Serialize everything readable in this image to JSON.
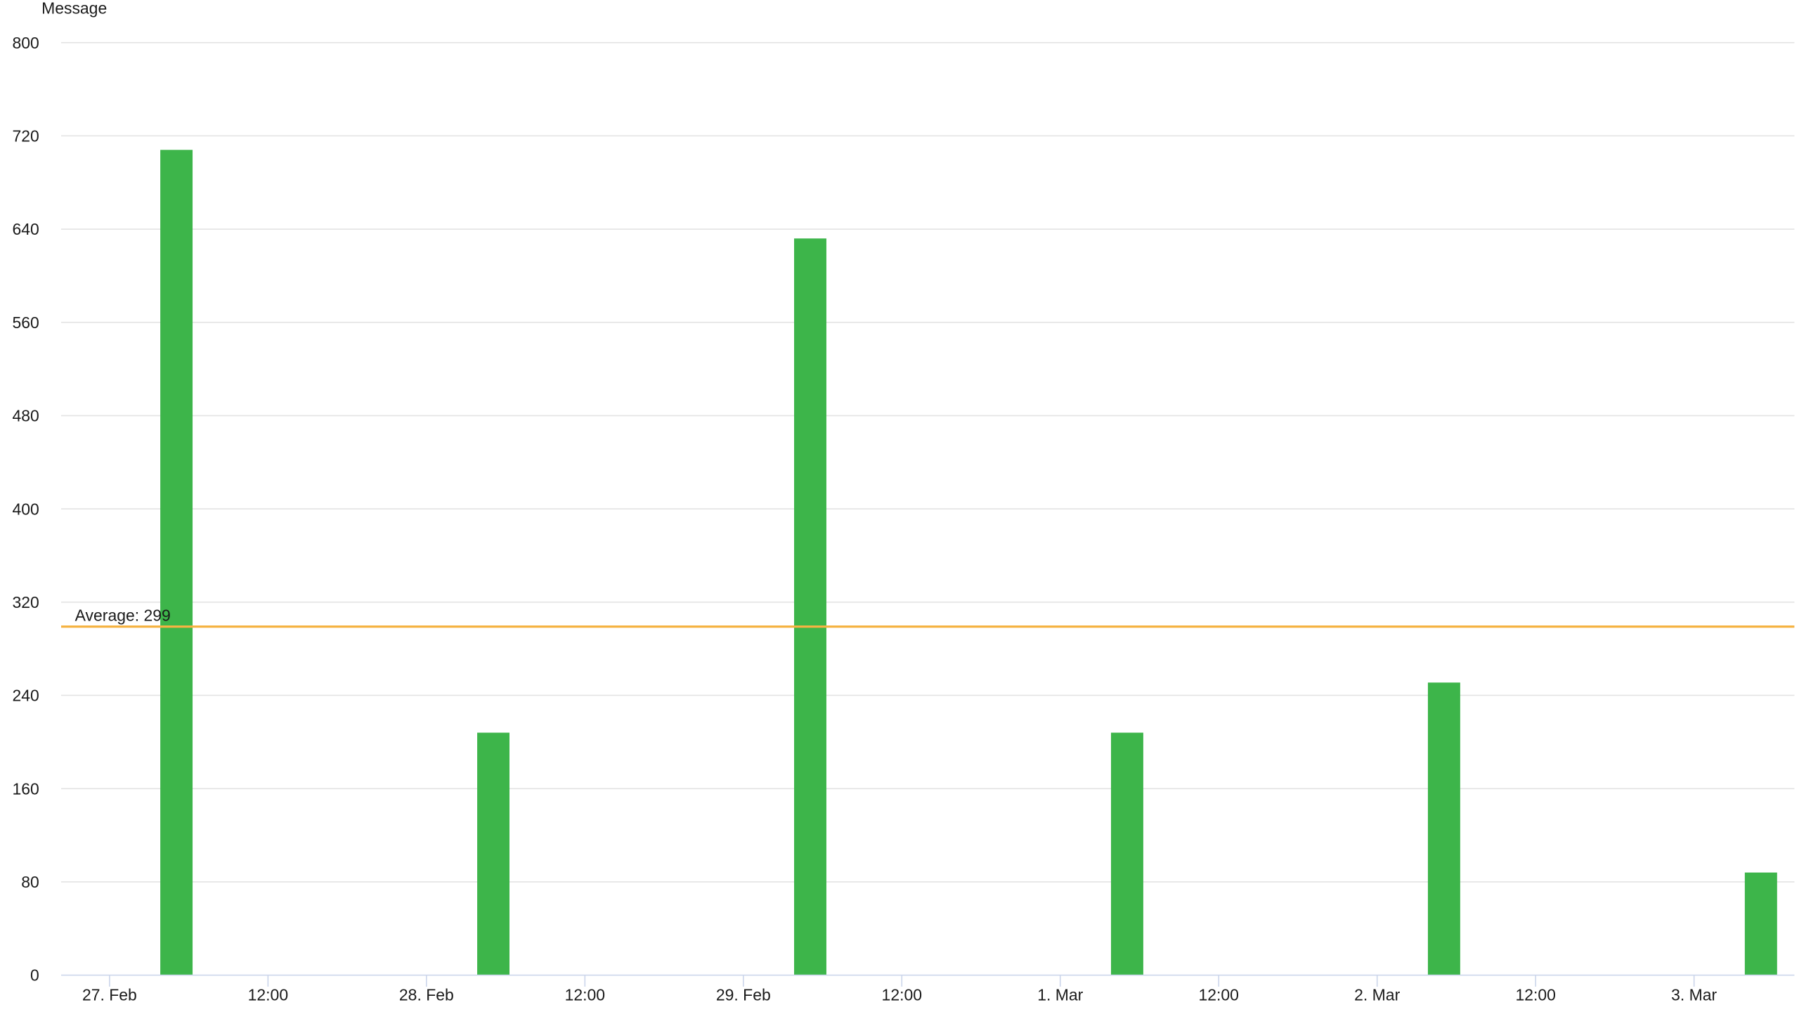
{
  "chart_data": {
    "type": "bar",
    "title": "",
    "ylabel": "Message",
    "xlabel": "",
    "ylim": [
      0,
      800
    ],
    "yticks": [
      0,
      80,
      160,
      240,
      320,
      400,
      480,
      560,
      640,
      720,
      800
    ],
    "xticks": [
      "27. Feb",
      "12:00",
      "28. Feb",
      "12:00",
      "29. Feb",
      "12:00",
      "1. Mar",
      "12:00",
      "2. Mar",
      "12:00",
      "3. Mar"
    ],
    "categories": [
      "27. Feb",
      "28. Feb",
      "29. Feb",
      "1. Mar",
      "2. Mar",
      "3. Mar"
    ],
    "values": [
      708,
      208,
      632,
      208,
      251,
      88
    ],
    "bar_color": "#3db54a",
    "grid": true,
    "average": {
      "label": "Average: 299",
      "value": 299,
      "color": "#f5b342"
    }
  }
}
